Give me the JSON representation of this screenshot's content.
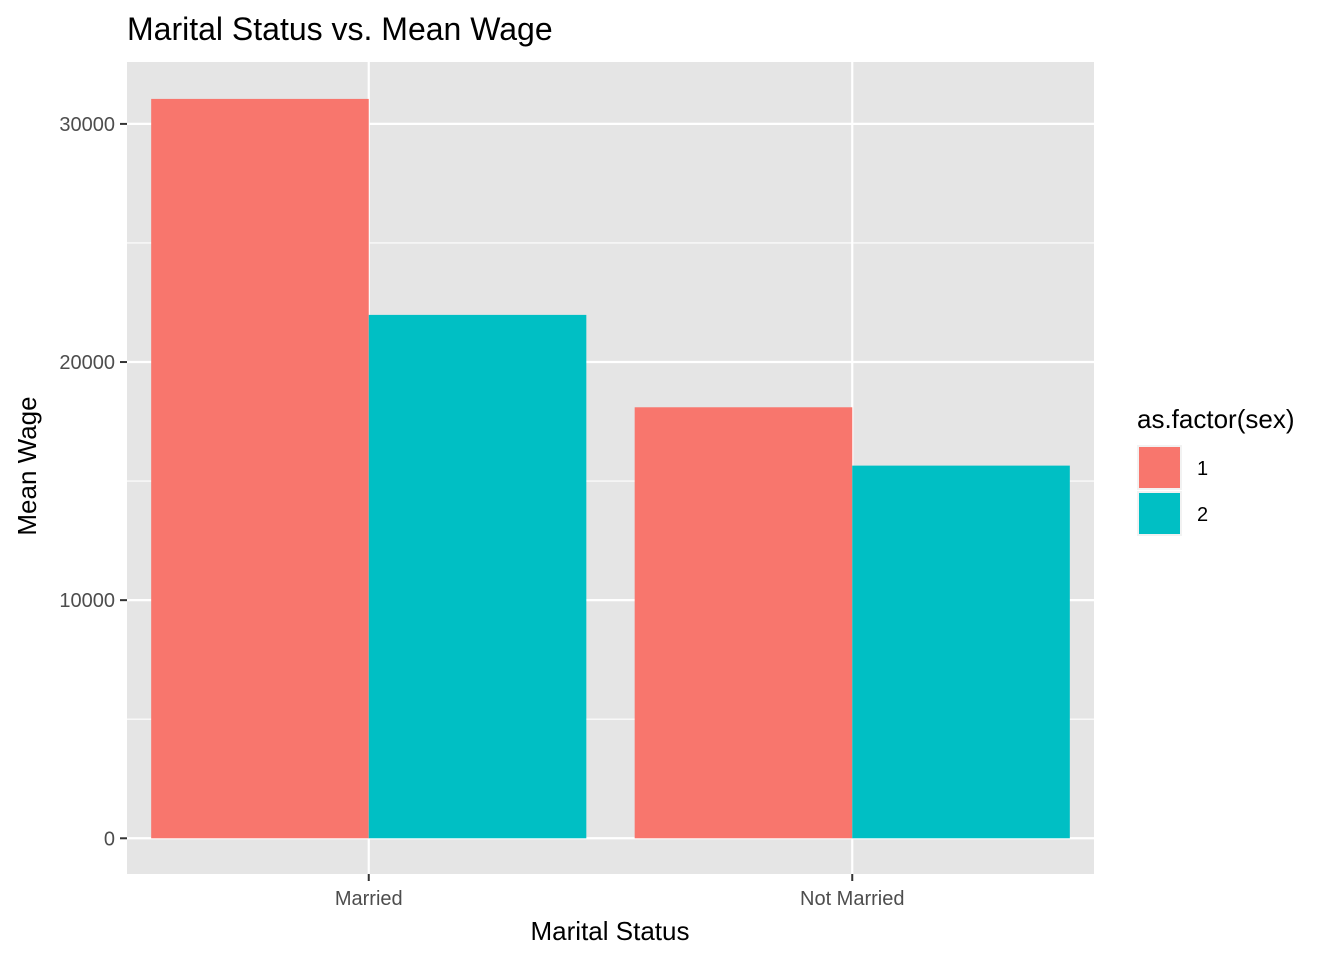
{
  "chart_data": {
    "type": "bar",
    "title": "Marital Status vs. Mean Wage",
    "xlabel": "Marital Status",
    "ylabel": "Mean Wage",
    "categories": [
      "Married",
      "Not Married"
    ],
    "series": [
      {
        "name": "1",
        "color": "#F8766D",
        "values": [
          31050,
          18100
        ]
      },
      {
        "name": "2",
        "color": "#00BFC4",
        "values": [
          21980,
          15650
        ]
      }
    ],
    "ylim": [
      -1500,
      32600
    ],
    "yticks": [
      0,
      10000,
      20000,
      30000
    ],
    "ytick_labels": [
      "0",
      "10000",
      "20000",
      "30000"
    ],
    "grid": true,
    "legend": {
      "title": "as.factor(sex)",
      "placement": "right"
    },
    "colors": {
      "panel_bg": "#E5E5E5",
      "grid": "#FFFFFF",
      "tick_text": "#4D4D4D"
    }
  }
}
